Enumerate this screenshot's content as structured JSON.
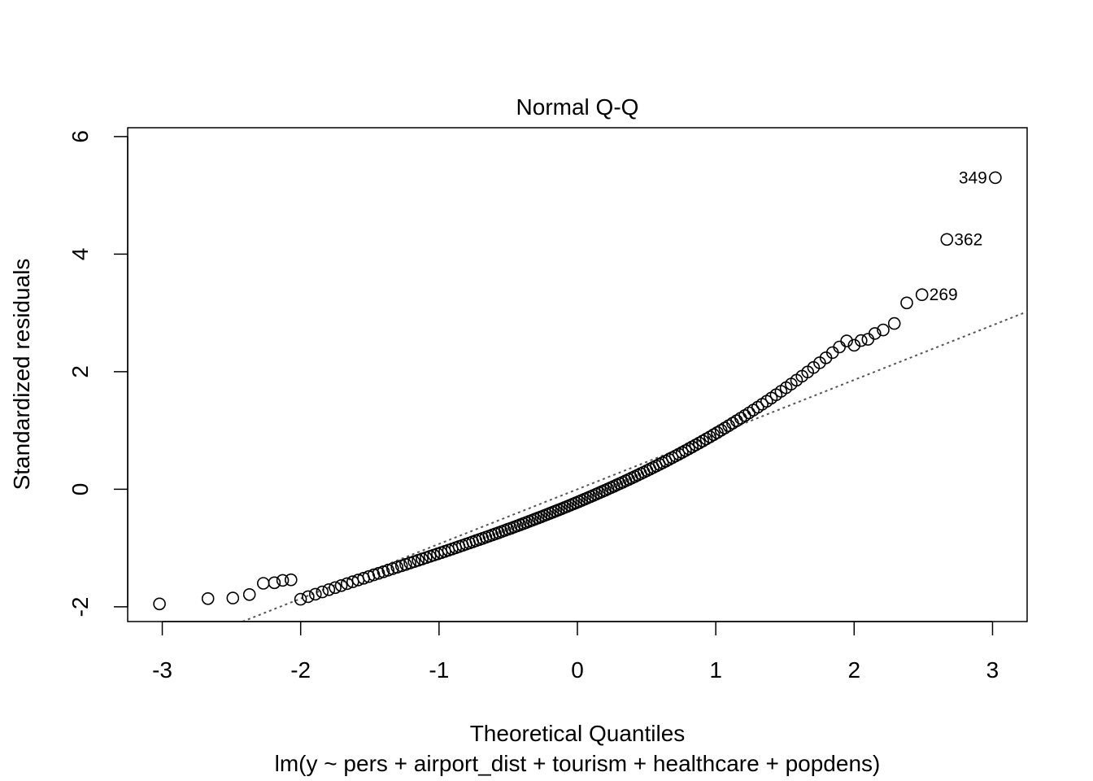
{
  "chart_data": {
    "type": "scatter",
    "title": "Normal Q-Q",
    "xlabel": "Theoretical Quantiles",
    "subtitle": "lm(y ~ pers + airport_dist + tourism + healthcare + popdens)",
    "ylabel": "Standardized residuals",
    "xlim": [
      -3.25,
      3.25
    ],
    "ylim": [
      -2.25,
      6.15
    ],
    "xticks": [
      -3,
      -2,
      -1,
      0,
      1,
      2,
      3
    ],
    "yticks": [
      -2,
      0,
      2,
      4,
      6
    ],
    "xtick_labels": [
      "-3",
      "-2",
      "-1",
      "0",
      "1",
      "2",
      "3"
    ],
    "ytick_labels": [
      "-2",
      "0",
      "2",
      "4",
      "6"
    ],
    "grid": false,
    "reference_line": {
      "style": "dotted",
      "color": "#555555",
      "intercept": 0.0,
      "slope": 0.93
    },
    "labeled_points": [
      {
        "label": "349",
        "x": 3.02,
        "y": 5.3
      },
      {
        "label": "362",
        "x": 2.67,
        "y": 4.25
      },
      {
        "label": "269",
        "x": 2.49,
        "y": 3.31
      }
    ],
    "point_style": "open-circle",
    "curve_shape": {
      "a": -0.22,
      "b": 0.985,
      "c": 0.15,
      "d": 0.035
    },
    "n_points": 170,
    "extreme_points": [
      {
        "x": -3.02,
        "y": -1.95
      },
      {
        "x": -2.67,
        "y": -1.86
      },
      {
        "x": -2.49,
        "y": -1.85
      },
      {
        "x": -2.37,
        "y": -1.79
      },
      {
        "x": -2.27,
        "y": -1.6
      },
      {
        "x": -2.19,
        "y": -1.59
      },
      {
        "x": -2.13,
        "y": -1.55
      },
      {
        "x": -2.07,
        "y": -1.54
      },
      {
        "x": 2.0,
        "y": 2.45
      },
      {
        "x": 2.05,
        "y": 2.53
      },
      {
        "x": 2.1,
        "y": 2.55
      },
      {
        "x": 2.15,
        "y": 2.65
      },
      {
        "x": 2.21,
        "y": 2.71
      },
      {
        "x": 2.29,
        "y": 2.82
      },
      {
        "x": 2.38,
        "y": 3.17
      }
    ]
  }
}
